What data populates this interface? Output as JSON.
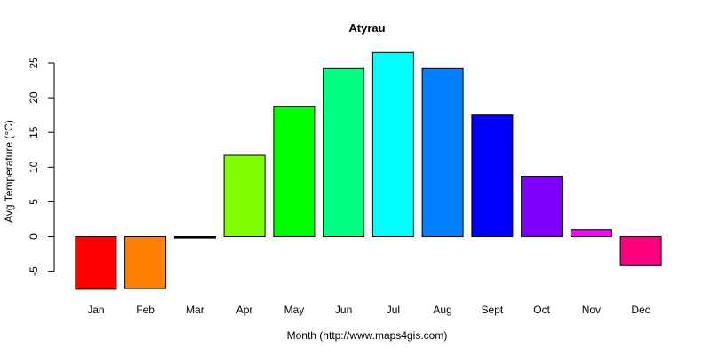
{
  "chart_data": {
    "type": "bar",
    "title": "Atyrau",
    "xlabel": "Month (http://www.maps4gis.com)",
    "ylabel": "Avg Temperature (°C)",
    "categories": [
      "Jan",
      "Feb",
      "Mar",
      "Apr",
      "May",
      "Jun",
      "Jul",
      "Aug",
      "Sept",
      "Oct",
      "Nov",
      "Dec"
    ],
    "values": [
      -7.6,
      -7.5,
      -0.2,
      11.7,
      18.7,
      24.2,
      26.5,
      24.2,
      17.5,
      8.7,
      1.0,
      -4.2
    ],
    "colors": [
      "#FF0000",
      "#FF8000",
      "#000000",
      "#80FF00",
      "#00FF00",
      "#00FF80",
      "#00FFFF",
      "#0080FF",
      "#0000FF",
      "#8000FF",
      "#FF00FF",
      "#FF0080"
    ],
    "yticks": [
      -5,
      0,
      5,
      10,
      15,
      20,
      25
    ],
    "ylim": [
      -7.6,
      26.5
    ],
    "grid": false,
    "legend": "none"
  }
}
